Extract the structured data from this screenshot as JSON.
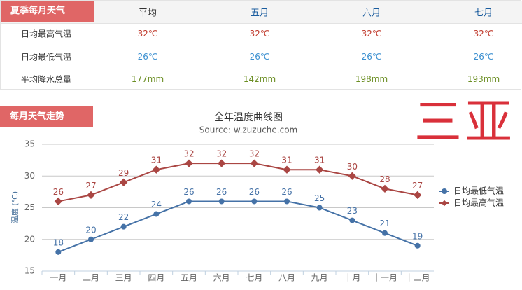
{
  "table": {
    "header": [
      "夏季每月天气",
      "平均",
      "五月",
      "六月",
      "七月"
    ],
    "rows": [
      [
        "日均最高气温",
        "32℃",
        "32℃",
        "32℃",
        "32℃"
      ],
      [
        "日均最低气温",
        "26℃",
        "26℃",
        "26℃",
        "26℃"
      ],
      [
        "平均降水总量",
        "177mm",
        "142mm",
        "198mm",
        "193mm"
      ]
    ]
  },
  "section_title": "每月天气走势",
  "city": "三亚",
  "chart_data": {
    "type": "line",
    "title": "全年温度曲线图",
    "subtitle": "Source: w.zuzuche.com",
    "y_label": "温度 (℃)",
    "categories": [
      "一月",
      "二月",
      "三月",
      "四月",
      "五月",
      "六月",
      "七月",
      "八月",
      "九月",
      "十月",
      "十一月",
      "十二月"
    ],
    "series": [
      {
        "name": "日均最低气温",
        "color": "#4572a7",
        "values": [
          18,
          20,
          22,
          24,
          26,
          26,
          26,
          26,
          25,
          23,
          21,
          19
        ]
      },
      {
        "name": "日均最高气温",
        "color": "#aa4643",
        "values": [
          26,
          27,
          29,
          31,
          32,
          32,
          32,
          31,
          31,
          30,
          28,
          27
        ]
      }
    ],
    "ylim": [
      15,
      35
    ],
    "yticks": [
      15,
      20,
      25,
      30,
      35
    ],
    "grid": true,
    "legend": "right"
  }
}
